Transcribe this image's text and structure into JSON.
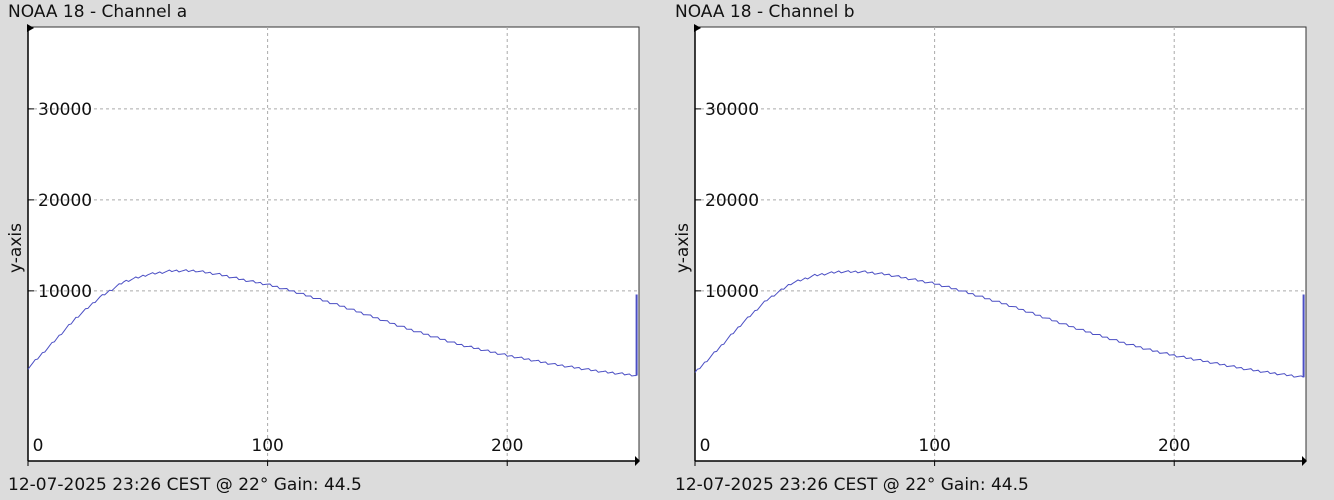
{
  "chart_data": [
    {
      "type": "line",
      "title": "NOAA 18 - Channel a",
      "xlabel": "",
      "ylabel": "y-axis",
      "xlim": [
        0,
        255
      ],
      "ylim": [
        -8700,
        39000
      ],
      "xticks": [
        0,
        100,
        200
      ],
      "yticks": [
        10000,
        20000,
        30000
      ],
      "grid": true,
      "footer": "12-07-2025 23:26 CEST @ 22° Gain: 44.5",
      "line_color": "#4b4fc4",
      "series": [
        {
          "x": [
            0,
            10,
            20,
            30,
            40,
            50,
            60,
            70,
            80,
            90,
            100,
            110,
            120,
            130,
            140,
            150,
            160,
            170,
            180,
            190,
            200,
            210,
            220,
            230,
            240,
            254
          ],
          "y": [
            1500,
            4200,
            7000,
            9300,
            11000,
            11800,
            12200,
            12200,
            11800,
            11200,
            10700,
            10000,
            9200,
            8400,
            7500,
            6600,
            5700,
            4900,
            4100,
            3500,
            2900,
            2400,
            1900,
            1500,
            1100,
            700
          ]
        }
      ],
      "spike": {
        "x": 254,
        "y": 9600
      }
    },
    {
      "type": "line",
      "title": "NOAA 18 - Channel b",
      "xlabel": "",
      "ylabel": "y-axis",
      "xlim": [
        0,
        255
      ],
      "ylim": [
        -8700,
        39000
      ],
      "xticks": [
        0,
        100,
        200
      ],
      "yticks": [
        10000,
        20000,
        30000
      ],
      "grid": true,
      "footer": "12-07-2025 23:26 CEST @ 22° Gain: 44.5",
      "line_color": "#4b4fc4",
      "series": [
        {
          "x": [
            0,
            10,
            20,
            30,
            40,
            50,
            60,
            70,
            80,
            90,
            100,
            110,
            120,
            130,
            140,
            150,
            160,
            170,
            180,
            190,
            200,
            210,
            220,
            230,
            240,
            254
          ],
          "y": [
            1000,
            3700,
            6500,
            9000,
            10800,
            11700,
            12100,
            12100,
            11800,
            11300,
            10800,
            10100,
            9300,
            8500,
            7600,
            6700,
            5800,
            5000,
            4200,
            3500,
            2900,
            2400,
            1900,
            1400,
            1000,
            500
          ]
        }
      ],
      "spike": {
        "x": 254,
        "y": 9600
      }
    }
  ]
}
